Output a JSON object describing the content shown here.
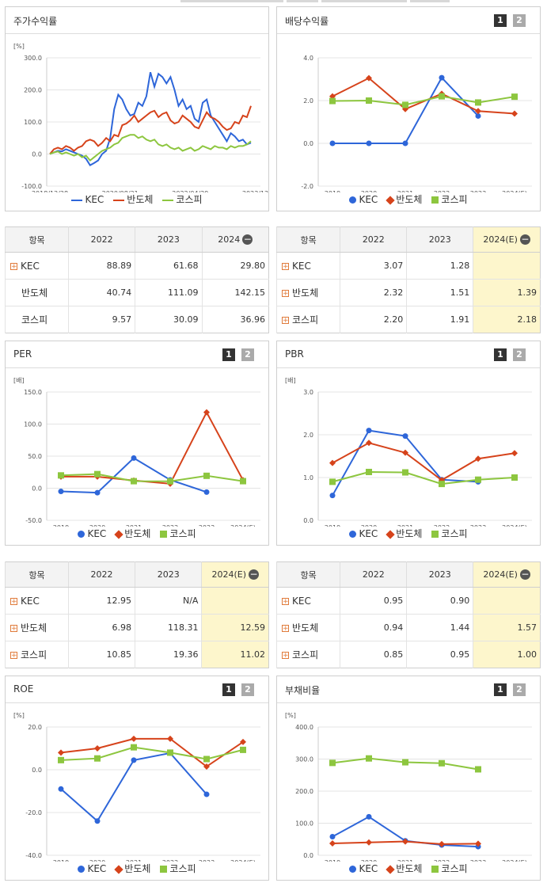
{
  "colors": {
    "kec": "#2e66d9",
    "semi": "#d6431b",
    "kospi": "#8dc63f"
  },
  "panels": {
    "return": {
      "title": "주가수익률",
      "pages": []
    },
    "dividend": {
      "title": "배당수익률",
      "pages": [
        "1",
        "2"
      ]
    },
    "per": {
      "title": "PER",
      "pages": [
        "1",
        "2"
      ]
    },
    "pbr": {
      "title": "PBR",
      "pages": [
        "1",
        "2"
      ]
    },
    "roe": {
      "title": "ROE",
      "pages": [
        "1",
        "2"
      ]
    },
    "debt": {
      "title": "부채비율",
      "pages": [
        "1",
        "2"
      ]
    }
  },
  "legend": {
    "kec": "KEC",
    "semi": "반도체",
    "kospi": "코스피"
  },
  "tables": {
    "return": {
      "headers": [
        "항목",
        "2022",
        "2023",
        "2024"
      ],
      "rows": [
        {
          "name": "KEC",
          "expand": true,
          "values": [
            "88.89",
            "61.68",
            "29.80"
          ]
        },
        {
          "name": "반도체",
          "expand": false,
          "values": [
            "40.74",
            "111.09",
            "142.15"
          ]
        },
        {
          "name": "코스피",
          "expand": false,
          "values": [
            "9.57",
            "30.09",
            "36.96"
          ]
        }
      ]
    },
    "dividend": {
      "headers": [
        "항목",
        "2022",
        "2023",
        "2024(E)"
      ],
      "rows": [
        {
          "name": "KEC",
          "expand": true,
          "values": [
            "3.07",
            "1.28",
            ""
          ]
        },
        {
          "name": "반도체",
          "expand": true,
          "values": [
            "2.32",
            "1.51",
            "1.39"
          ]
        },
        {
          "name": "코스피",
          "expand": true,
          "values": [
            "2.20",
            "1.91",
            "2.18"
          ]
        }
      ]
    },
    "per": {
      "headers": [
        "항목",
        "2022",
        "2023",
        "2024(E)"
      ],
      "rows": [
        {
          "name": "KEC",
          "expand": true,
          "values": [
            "12.95",
            "N/A",
            ""
          ]
        },
        {
          "name": "반도체",
          "expand": true,
          "values": [
            "6.98",
            "118.31",
            "12.59"
          ]
        },
        {
          "name": "코스피",
          "expand": true,
          "values": [
            "10.85",
            "19.36",
            "11.02"
          ]
        }
      ]
    },
    "pbr": {
      "headers": [
        "항목",
        "2022",
        "2023",
        "2024(E)"
      ],
      "rows": [
        {
          "name": "KEC",
          "expand": true,
          "values": [
            "0.95",
            "0.90",
            ""
          ]
        },
        {
          "name": "반도체",
          "expand": true,
          "values": [
            "0.94",
            "1.44",
            "1.57"
          ]
        },
        {
          "name": "코스피",
          "expand": true,
          "values": [
            "0.85",
            "0.95",
            "1.00"
          ]
        }
      ]
    }
  },
  "chart_data": [
    {
      "id": "return",
      "type": "line",
      "title": "주가수익률",
      "unit": "[%]",
      "ylim": [
        -100,
        300
      ],
      "yticks": [
        "300.0",
        "200.0",
        "100.0",
        "0.0",
        "-100.0"
      ],
      "xticks": [
        "2018/12/28",
        "2020/08/31",
        "2022/04/29",
        "2023/12/28"
      ],
      "series": [
        {
          "name": "KEC",
          "values": [
            0,
            5,
            10,
            8,
            15,
            10,
            5,
            0,
            -5,
            -15,
            -35,
            -28,
            -20,
            0,
            10,
            50,
            140,
            185,
            170,
            140,
            120,
            125,
            160,
            150,
            180,
            255,
            210,
            250,
            240,
            220,
            240,
            200,
            150,
            170,
            140,
            150,
            110,
            100,
            160,
            170,
            120,
            100,
            80,
            60,
            40,
            65,
            55,
            40,
            45,
            30,
            35
          ]
        },
        {
          "name": "반도체",
          "values": [
            0,
            15,
            20,
            15,
            25,
            20,
            10,
            20,
            25,
            40,
            45,
            40,
            25,
            35,
            50,
            40,
            60,
            55,
            90,
            95,
            105,
            120,
            100,
            110,
            120,
            130,
            135,
            115,
            125,
            130,
            105,
            95,
            100,
            120,
            110,
            100,
            85,
            80,
            105,
            130,
            115,
            110,
            100,
            85,
            75,
            80,
            100,
            95,
            120,
            115,
            150
          ]
        },
        {
          "name": "코스피",
          "values": [
            0,
            5,
            8,
            0,
            5,
            0,
            -5,
            0,
            -10,
            -5,
            -20,
            -10,
            0,
            10,
            15,
            20,
            30,
            35,
            50,
            55,
            60,
            60,
            50,
            55,
            45,
            40,
            45,
            30,
            25,
            30,
            20,
            15,
            20,
            10,
            15,
            20,
            10,
            15,
            25,
            20,
            15,
            25,
            20,
            20,
            15,
            25,
            20,
            25,
            25,
            30,
            40
          ]
        }
      ]
    },
    {
      "id": "dividend",
      "type": "line",
      "title": "배당수익률",
      "unit": "",
      "ylim": [
        -2,
        4
      ],
      "yticks": [
        "4.0",
        "2.0",
        "0.0",
        "-2.0"
      ],
      "categories": [
        "2019",
        "2020",
        "2021",
        "2022",
        "2023",
        "2024(E)"
      ],
      "series": [
        {
          "name": "KEC",
          "values": [
            0.0,
            0.0,
            0.0,
            3.07,
            1.28,
            null
          ]
        },
        {
          "name": "반도체",
          "values": [
            2.2,
            3.05,
            1.6,
            2.32,
            1.51,
            1.39
          ]
        },
        {
          "name": "코스피",
          "values": [
            1.98,
            2.0,
            1.8,
            2.2,
            1.91,
            2.18
          ]
        }
      ]
    },
    {
      "id": "per",
      "type": "line",
      "title": "PER",
      "unit": "[배]",
      "ylim": [
        -50,
        150
      ],
      "yticks": [
        "150.0",
        "100.0",
        "50.0",
        "0.0",
        "-50.0"
      ],
      "categories": [
        "2019",
        "2020",
        "2021",
        "2022",
        "2023",
        "2024(E)"
      ],
      "series": [
        {
          "name": "KEC",
          "values": [
            -5,
            -7,
            47,
            12.95,
            -6,
            null
          ]
        },
        {
          "name": "반도체",
          "values": [
            18,
            18,
            12,
            6.98,
            118.31,
            12.59
          ]
        },
        {
          "name": "코스피",
          "values": [
            20,
            22,
            11,
            10.85,
            19.36,
            11.02
          ]
        }
      ]
    },
    {
      "id": "pbr",
      "type": "line",
      "title": "PBR",
      "unit": "[배]",
      "ylim": [
        0,
        3
      ],
      "yticks": [
        "3.0",
        "2.0",
        "1.0",
        "0.0"
      ],
      "categories": [
        "2019",
        "2020",
        "2021",
        "2022",
        "2023",
        "2024(E)"
      ],
      "series": [
        {
          "name": "KEC",
          "values": [
            0.58,
            2.1,
            1.97,
            0.95,
            0.9,
            null
          ]
        },
        {
          "name": "반도체",
          "values": [
            1.34,
            1.81,
            1.58,
            0.94,
            1.44,
            1.57
          ]
        },
        {
          "name": "코스피",
          "values": [
            0.9,
            1.13,
            1.12,
            0.85,
            0.95,
            1.0
          ]
        }
      ]
    },
    {
      "id": "roe",
      "type": "line",
      "title": "ROE",
      "unit": "[%]",
      "ylim": [
        -40,
        20
      ],
      "yticks": [
        "20.0",
        "0.0",
        "-20.0",
        "-40.0"
      ],
      "categories": [
        "2019",
        "2020",
        "2021",
        "2022",
        "2023",
        "2024(E)"
      ],
      "series": [
        {
          "name": "KEC",
          "values": [
            -9,
            -24,
            4.5,
            7.8,
            -11.5,
            null
          ]
        },
        {
          "name": "반도체",
          "values": [
            8,
            10,
            14.5,
            14.5,
            1.5,
            13
          ]
        },
        {
          "name": "코스피",
          "values": [
            4.5,
            5.3,
            10.5,
            8,
            5,
            9.3
          ]
        }
      ]
    },
    {
      "id": "debt",
      "type": "line",
      "title": "부채비율",
      "unit": "[%]",
      "ylim": [
        0,
        400
      ],
      "yticks": [
        "400.0",
        "300.0",
        "200.0",
        "100.0",
        "0.0"
      ],
      "categories": [
        "2019",
        "2020",
        "2021",
        "2022",
        "2023",
        "2024(E)"
      ],
      "series": [
        {
          "name": "KEC",
          "values": [
            58,
            120,
            45,
            32,
            27,
            null
          ]
        },
        {
          "name": "반도체",
          "values": [
            37,
            40,
            43,
            35,
            36,
            null
          ]
        },
        {
          "name": "코스피",
          "values": [
            288,
            302,
            290,
            287,
            268,
            null
          ]
        }
      ]
    }
  ]
}
